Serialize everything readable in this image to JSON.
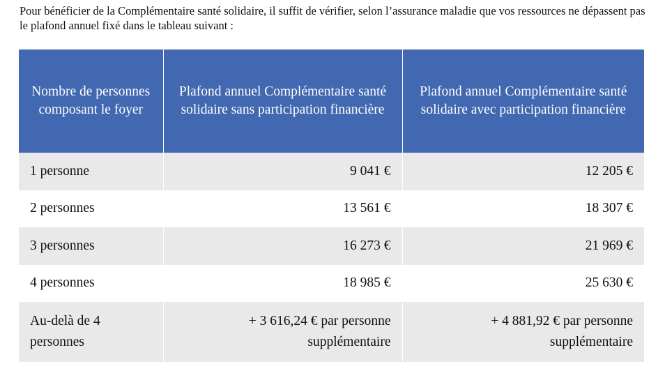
{
  "intro_text": "Pour bénéficier de la Complémentaire santé solidaire, il suffit de vérifier, selon l’assurance maladie que vos ressources ne dépassent pas le plafond annuel fixé dans le tableau suivant :",
  "table": {
    "headers": [
      "Nombre de personnes composant le foyer",
      "Plafond annuel Complémentaire santé solidaire sans participation financière",
      "Plafond annuel Complémentaire santé solidaire avec participation financière"
    ],
    "rows": [
      [
        "1 personne",
        "9 041 €",
        "12 205 €"
      ],
      [
        "2 personnes",
        "13 561 €",
        "18 307 €"
      ],
      [
        "3 personnes",
        "16 273 €",
        "21 969 €"
      ],
      [
        "4 personnes",
        "18 985 €",
        "25 630 €"
      ],
      [
        "Au-delà de 4 personnes",
        "+ 3 616,24 € par personne supplémentaire",
        "+ 4 881,92 € par personne supplémentaire"
      ]
    ]
  },
  "colors": {
    "header_bg": "#4168b0",
    "header_text": "#ffffff",
    "row_shade": "#e9e9e9",
    "row_plain": "#ffffff"
  }
}
